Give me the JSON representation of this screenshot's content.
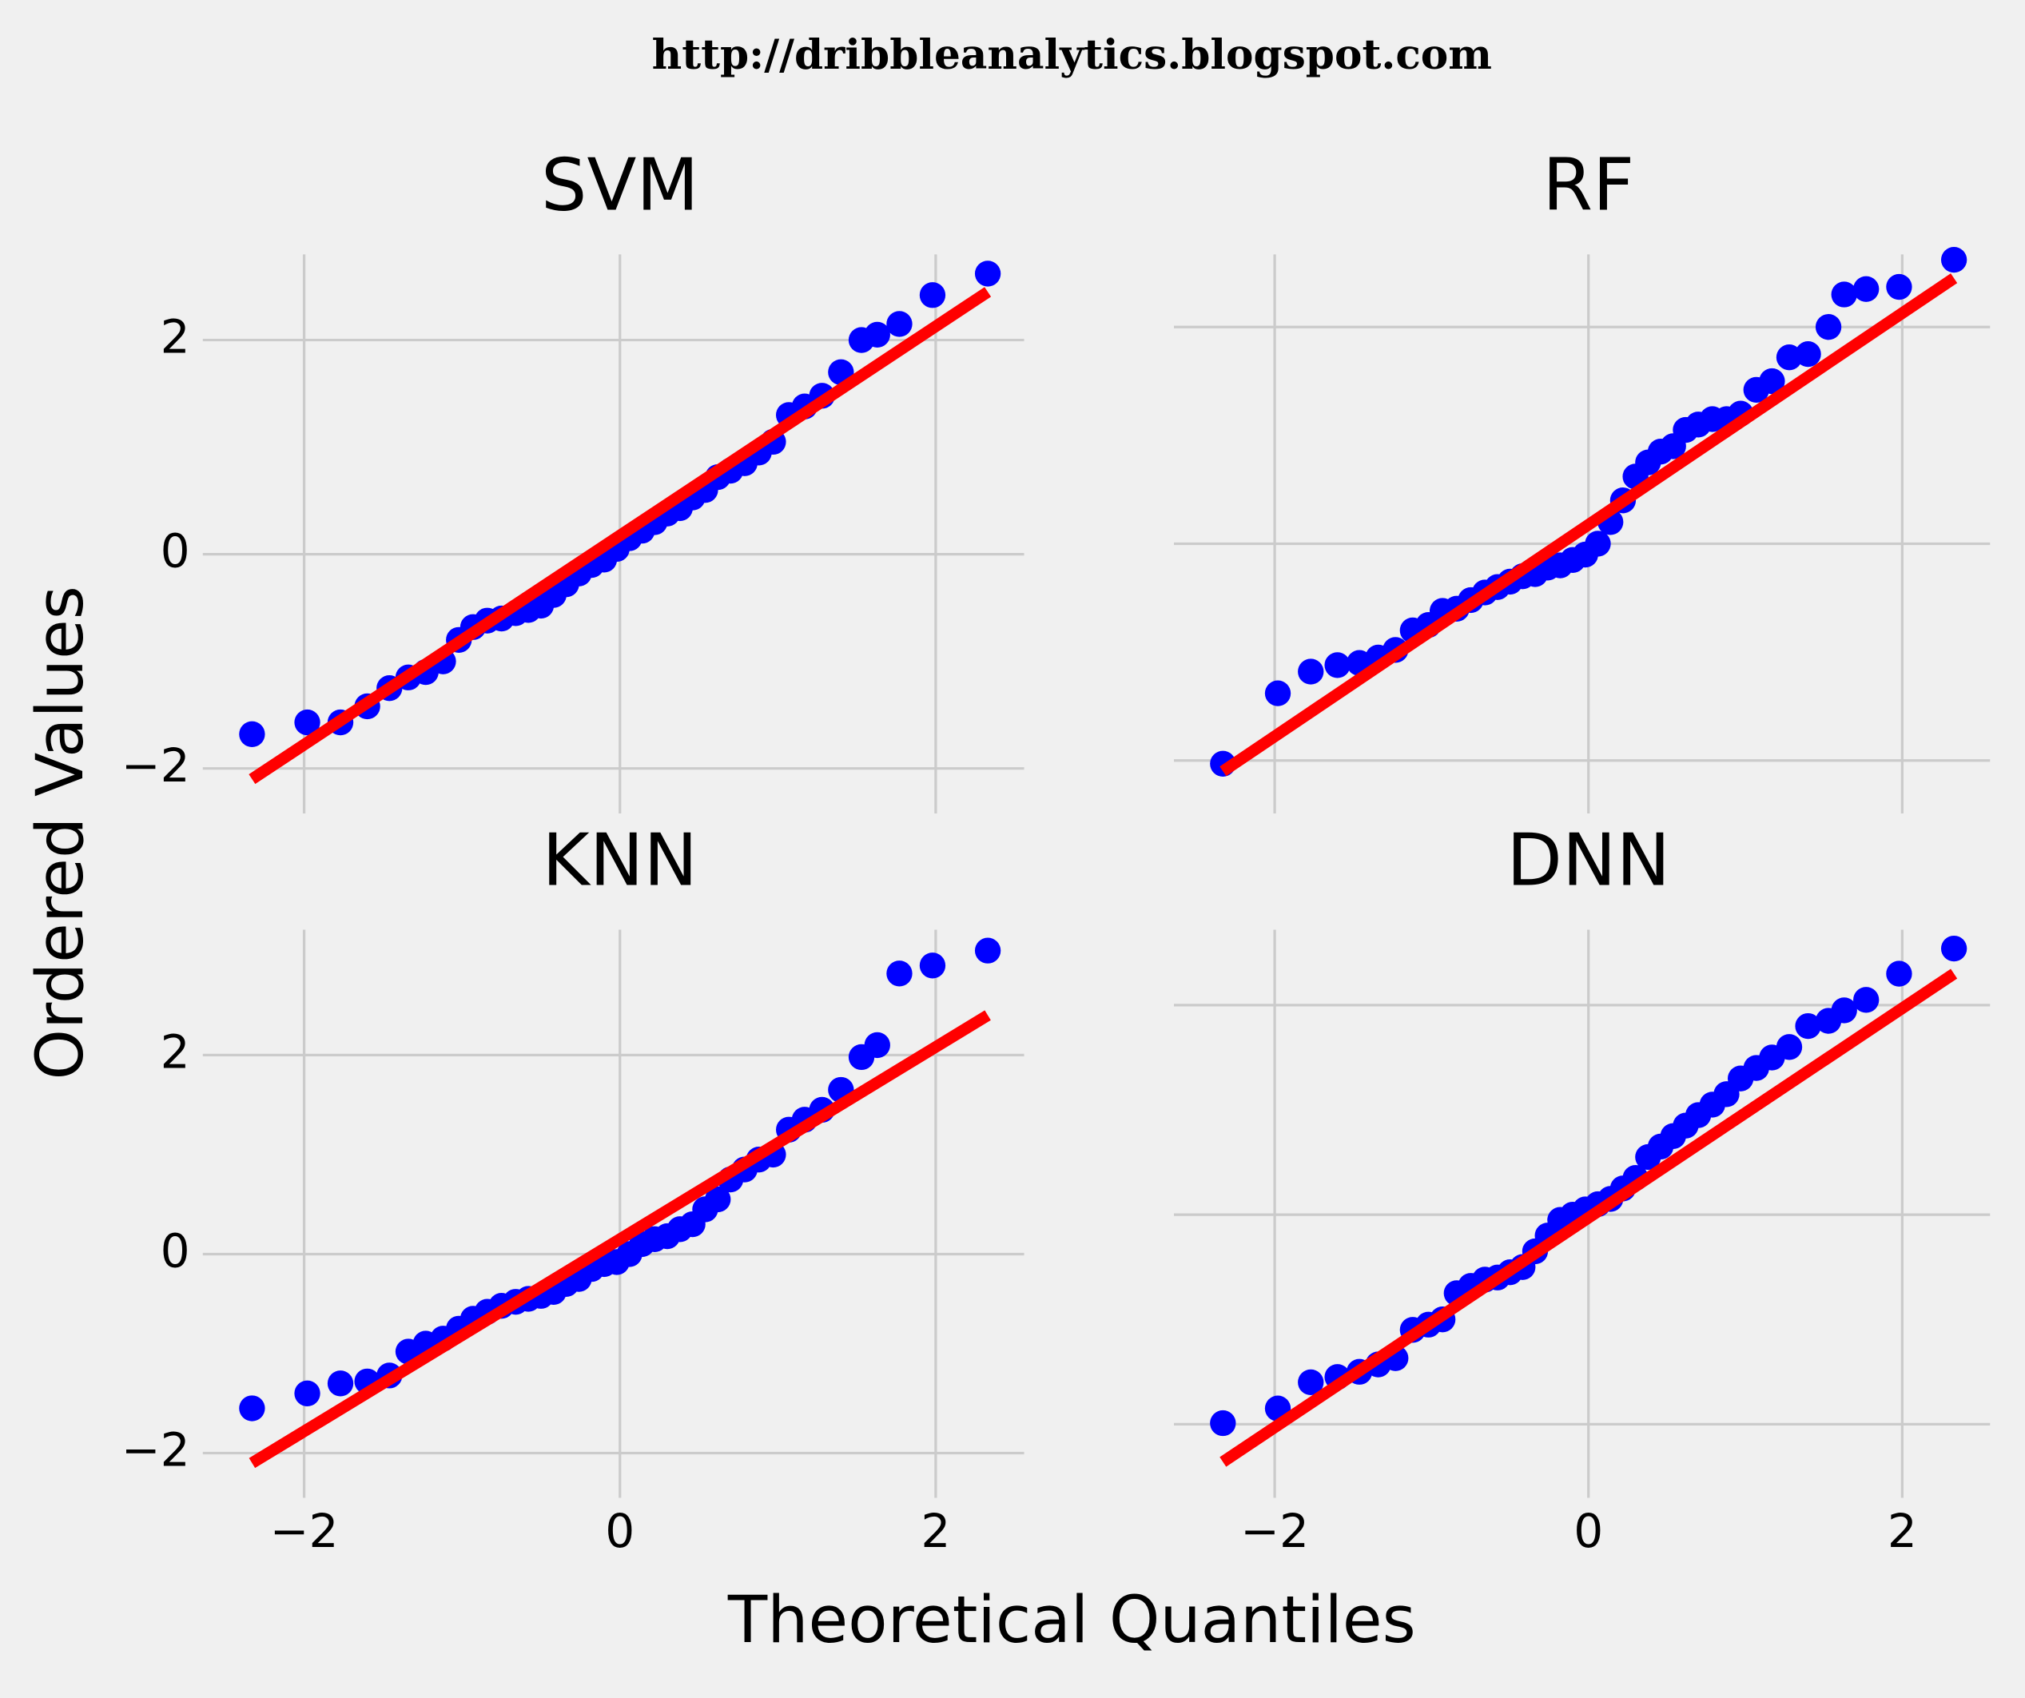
{
  "header": "http://dribbleanalytics.blogspot.com",
  "xlabel": "Theoretical Quantiles",
  "ylabel": "Ordered Values",
  "chart_data": [
    {
      "type": "scatter",
      "title": "SVM",
      "x": [
        -2.33,
        -1.98,
        -1.77,
        -1.6,
        -1.46,
        -1.34,
        -1.23,
        -1.12,
        -1.02,
        -0.93,
        -0.84,
        -0.75,
        -0.66,
        -0.58,
        -0.5,
        -0.42,
        -0.34,
        -0.26,
        -0.18,
        -0.1,
        -0.02,
        0.06,
        0.14,
        0.22,
        0.3,
        0.38,
        0.46,
        0.54,
        0.62,
        0.7,
        0.79,
        0.88,
        0.97,
        1.07,
        1.17,
        1.28,
        1.4,
        1.53,
        1.63,
        1.77,
        1.98,
        2.33
      ],
      "values": [
        -1.68,
        -1.57,
        -1.57,
        -1.42,
        -1.25,
        -1.15,
        -1.1,
        -1.0,
        -0.8,
        -0.68,
        -0.62,
        -0.6,
        -0.55,
        -0.52,
        -0.48,
        -0.38,
        -0.28,
        -0.18,
        -0.1,
        -0.05,
        0.05,
        0.15,
        0.22,
        0.3,
        0.38,
        0.43,
        0.53,
        0.6,
        0.72,
        0.78,
        0.85,
        0.95,
        1.05,
        1.3,
        1.38,
        1.48,
        1.7,
        2.0,
        2.05,
        2.15,
        2.42,
        2.62
      ],
      "color": "#0000ff",
      "fit": {
        "x": [
          -2.33,
          2.33
        ],
        "values": [
          -2.1,
          2.45
        ],
        "color": "#ff0000"
      },
      "xlim": [
        -2.56,
        2.56
      ],
      "ylim": [
        -2.3,
        2.8
      ],
      "xticks": [
        {
          "value": -2,
          "label": "−2"
        },
        0,
        2
      ],
      "yticks": [
        {
          "value": -2,
          "label": "−2"
        },
        0,
        2
      ],
      "show_xtick_labels": false,
      "show_ytick_labels": true,
      "grid": true
    },
    {
      "type": "scatter",
      "title": "RF",
      "x": [
        -2.33,
        -1.98,
        -1.77,
        -1.6,
        -1.46,
        -1.34,
        -1.23,
        -1.12,
        -1.02,
        -0.93,
        -0.84,
        -0.75,
        -0.66,
        -0.58,
        -0.5,
        -0.42,
        -0.34,
        -0.26,
        -0.18,
        -0.1,
        -0.02,
        0.06,
        0.14,
        0.22,
        0.3,
        0.38,
        0.46,
        0.54,
        0.62,
        0.7,
        0.79,
        0.88,
        0.97,
        1.07,
        1.17,
        1.28,
        1.4,
        1.53,
        1.63,
        1.77,
        1.98,
        2.33
      ],
      "values": [
        -2.03,
        -1.38,
        -1.18,
        -1.12,
        -1.1,
        -1.05,
        -0.98,
        -0.8,
        -0.75,
        -0.62,
        -0.6,
        -0.52,
        -0.45,
        -0.4,
        -0.35,
        -0.3,
        -0.28,
        -0.22,
        -0.2,
        -0.15,
        -0.1,
        0.0,
        0.2,
        0.4,
        0.62,
        0.75,
        0.85,
        0.9,
        1.05,
        1.1,
        1.15,
        1.15,
        1.2,
        1.42,
        1.5,
        1.72,
        1.75,
        2.0,
        2.3,
        2.35,
        2.37,
        2.62
      ],
      "color": "#0000ff",
      "fit": {
        "x": [
          -2.33,
          2.33
        ],
        "values": [
          -2.1,
          2.45
        ],
        "color": "#ff0000"
      },
      "xlim": [
        -2.56,
        2.56
      ],
      "ylim": [
        -2.37,
        2.67
      ],
      "xticks": [
        {
          "value": -2,
          "label": "−2"
        },
        0,
        2
      ],
      "yticks": [
        {
          "value": -2,
          "label": "−2"
        },
        0,
        2
      ],
      "show_xtick_labels": false,
      "show_ytick_labels": false,
      "grid": true
    },
    {
      "type": "scatter",
      "title": "KNN",
      "x": [
        -2.33,
        -1.98,
        -1.77,
        -1.6,
        -1.46,
        -1.34,
        -1.23,
        -1.12,
        -1.02,
        -0.93,
        -0.84,
        -0.75,
        -0.66,
        -0.58,
        -0.5,
        -0.42,
        -0.34,
        -0.26,
        -0.18,
        -0.1,
        -0.02,
        0.06,
        0.14,
        0.22,
        0.3,
        0.38,
        0.46,
        0.54,
        0.62,
        0.7,
        0.79,
        0.88,
        0.97,
        1.07,
        1.17,
        1.28,
        1.4,
        1.53,
        1.63,
        1.77,
        1.98,
        2.33
      ],
      "values": [
        -1.55,
        -1.4,
        -1.3,
        -1.28,
        -1.22,
        -0.98,
        -0.9,
        -0.85,
        -0.75,
        -0.65,
        -0.58,
        -0.52,
        -0.48,
        -0.45,
        -0.42,
        -0.38,
        -0.3,
        -0.25,
        -0.15,
        -0.1,
        -0.08,
        0.0,
        0.1,
        0.15,
        0.18,
        0.25,
        0.3,
        0.45,
        0.55,
        0.75,
        0.85,
        0.95,
        1.0,
        1.25,
        1.35,
        1.45,
        1.65,
        1.98,
        2.1,
        2.82,
        2.9,
        3.05
      ],
      "color": "#0000ff",
      "fit": {
        "x": [
          -2.33,
          2.33
        ],
        "values": [
          -2.1,
          2.4
        ],
        "color": "#ff0000"
      },
      "xlim": [
        -2.56,
        2.56
      ],
      "ylim": [
        -2.32,
        3.26
      ],
      "xticks": [
        {
          "value": -2,
          "label": "−2"
        },
        0,
        2
      ],
      "yticks": [
        {
          "value": -2,
          "label": "−2"
        },
        0,
        2
      ],
      "show_xtick_labels": true,
      "show_ytick_labels": true,
      "grid": true
    },
    {
      "type": "scatter",
      "title": "DNN",
      "x": [
        -2.33,
        -1.98,
        -1.77,
        -1.6,
        -1.46,
        -1.34,
        -1.23,
        -1.12,
        -1.02,
        -0.93,
        -0.84,
        -0.75,
        -0.66,
        -0.58,
        -0.5,
        -0.42,
        -0.34,
        -0.26,
        -0.18,
        -0.1,
        -0.02,
        0.06,
        0.14,
        0.22,
        0.3,
        0.38,
        0.46,
        0.54,
        0.62,
        0.7,
        0.79,
        0.88,
        0.97,
        1.07,
        1.17,
        1.28,
        1.4,
        1.53,
        1.63,
        1.77,
        1.98,
        2.33
      ],
      "values": [
        -1.99,
        -1.85,
        -1.6,
        -1.55,
        -1.5,
        -1.43,
        -1.37,
        -1.1,
        -1.05,
        -1.0,
        -0.75,
        -0.68,
        -0.62,
        -0.6,
        -0.55,
        -0.5,
        -0.35,
        -0.2,
        -0.05,
        0.0,
        0.05,
        0.1,
        0.15,
        0.25,
        0.35,
        0.55,
        0.65,
        0.75,
        0.85,
        0.95,
        1.05,
        1.15,
        1.3,
        1.4,
        1.5,
        1.6,
        1.8,
        1.85,
        1.95,
        2.05,
        2.3,
        2.54
      ],
      "color": "#0000ff",
      "fit": {
        "x": [
          -2.33,
          2.33
        ],
        "values": [
          -2.36,
          2.3
        ],
        "color": "#ff0000"
      },
      "xlim": [
        -2.56,
        2.56
      ],
      "ylim": [
        -2.58,
        2.72
      ],
      "xticks": [
        {
          "value": -2,
          "label": "−2"
        },
        0,
        2
      ],
      "yticks": [
        {
          "value": -2,
          "label": "−2"
        },
        0,
        2
      ],
      "show_xtick_labels": true,
      "show_ytick_labels": false,
      "grid": true
    }
  ]
}
